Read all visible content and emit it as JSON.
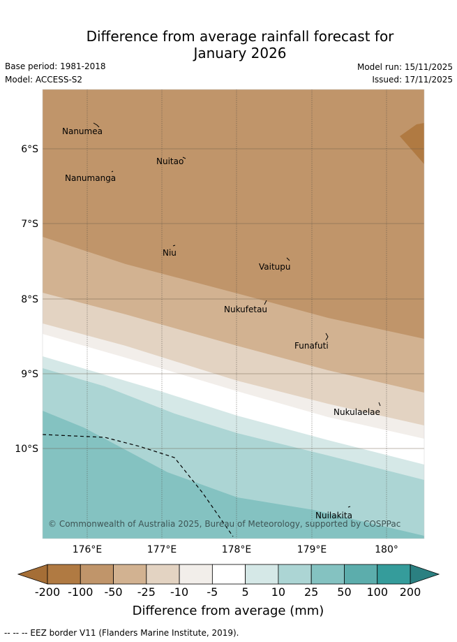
{
  "title": {
    "line1": "Difference from average rainfall forecast for",
    "line2": "January 2026"
  },
  "meta": {
    "base_period": "Base period: 1981-2018",
    "model": "Model: ACCESS-S2",
    "model_run": "Model run: 15/11/2025",
    "issued": "Issued: 17/11/2025"
  },
  "map": {
    "lat_ticks": [
      "6°S",
      "7°S",
      "8°S",
      "9°S",
      "10°S"
    ],
    "lon_ticks": [
      "176°E",
      "177°E",
      "178°E",
      "179°E",
      "180°"
    ],
    "places": [
      {
        "name": "Nanumea"
      },
      {
        "name": "Nuitao"
      },
      {
        "name": "Nanumanga"
      },
      {
        "name": "Niu"
      },
      {
        "name": "Vaitupu"
      },
      {
        "name": "Nukufetau"
      },
      {
        "name": "Funafuti"
      },
      {
        "name": "Nukulaelae"
      },
      {
        "name": "Nuilakita"
      }
    ],
    "copyright": "© Commonwealth of Australia 2025, Bureau of Meteorology, supported by COSPPac"
  },
  "legend": {
    "colors": [
      "#b07a42",
      "#c0956a",
      "#d2b291",
      "#e3d3c2",
      "#f2eeea",
      "#ffffff",
      "#d5e8e7",
      "#acd5d4",
      "#84c2c1",
      "#5cadac",
      "#359c9b"
    ],
    "under_color": "#a56e36",
    "over_color": "#2b8081",
    "tick_labels": [
      "-200",
      "-100",
      "-50",
      "-25",
      "-10",
      "-5",
      "5",
      "10",
      "25",
      "50",
      "100",
      "200"
    ],
    "title": "Difference from average (mm)"
  },
  "footer": "-- --  -- EEZ border V11 (Flanders Marine Institute, 2019)."
}
